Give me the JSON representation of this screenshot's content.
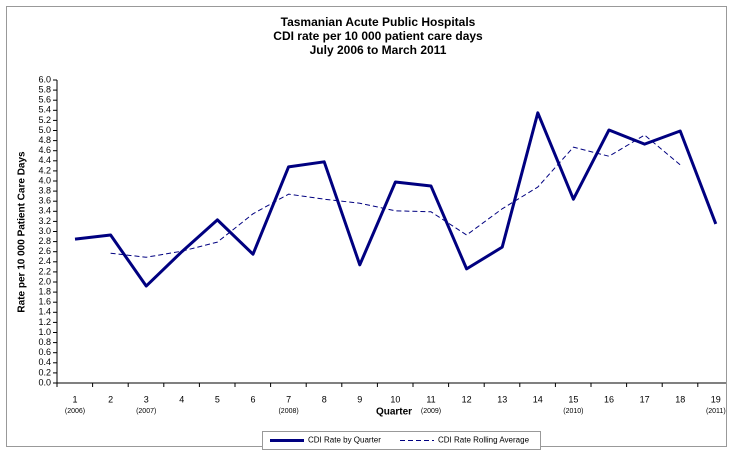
{
  "chart_data": {
    "type": "line",
    "title": [
      "Tasmanian Acute Public Hospitals",
      "CDI rate per 10 000 patient care days",
      "July 2006 to March 2011"
    ],
    "y_label": "Rate per 10 000 Patient Care Days",
    "x_label": "Quarter",
    "categories": [
      "1",
      "2",
      "3",
      "4",
      "5",
      "6",
      "7",
      "8",
      "9",
      "10",
      "11",
      "12",
      "13",
      "14",
      "15",
      "16",
      "17",
      "18",
      "19"
    ],
    "sub_labels": [
      "(2006)",
      null,
      "(2007)",
      null,
      null,
      null,
      "(2008)",
      null,
      null,
      null,
      "(2009)",
      null,
      null,
      null,
      "(2010)",
      null,
      null,
      null,
      "(2011)"
    ],
    "series": [
      {
        "name": "CDI Rate by Quarter",
        "color": "#000080",
        "style": "solid",
        "values": [
          2.85,
          2.93,
          1.92,
          2.6,
          3.23,
          2.55,
          4.28,
          4.38,
          2.34,
          3.98,
          3.9,
          2.26,
          2.69,
          5.35,
          3.64,
          5.01,
          4.73,
          4.99,
          3.15
        ]
      },
      {
        "name": "CDI Rate Rolling Average",
        "color": "#000080",
        "style": "dashed",
        "values": [
          null,
          2.57,
          2.49,
          2.61,
          2.79,
          3.35,
          3.74,
          3.64,
          3.56,
          3.41,
          3.39,
          2.93,
          3.45,
          3.88,
          4.67,
          4.49,
          4.91,
          4.32,
          null
        ]
      }
    ],
    "ylim": [
      0,
      6
    ],
    "yticks": [
      {
        "value": 0,
        "label": "0.0"
      },
      0.2,
      0.4,
      0.6,
      0.8,
      {
        "value": 1,
        "label": "1.0"
      },
      1.2,
      1.4,
      1.6,
      1.8,
      {
        "value": 2,
        "label": "2.0"
      },
      2.2,
      2.4,
      2.6,
      2.8,
      {
        "value": 3,
        "label": "3.0"
      },
      3.2,
      3.4,
      3.6,
      3.8,
      {
        "value": 4,
        "label": "4.0"
      },
      4.2,
      4.4,
      4.6,
      4.8,
      {
        "value": 5,
        "label": "5.0"
      },
      5.2,
      5.4,
      5.6,
      5.8,
      {
        "value": 6,
        "label": "6.0"
      }
    ],
    "grid": false,
    "legend": "bottom"
  }
}
